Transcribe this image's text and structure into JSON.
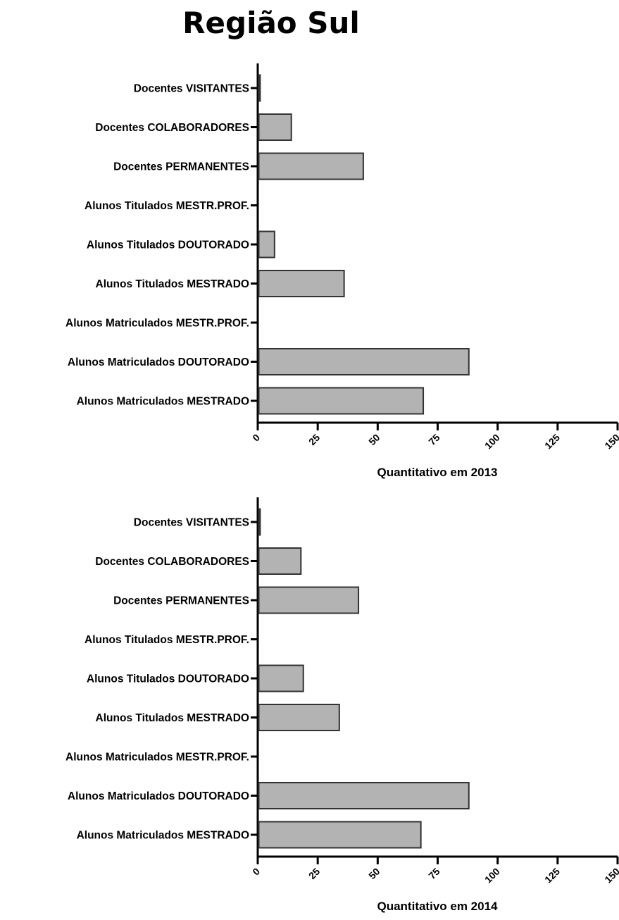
{
  "page": {
    "title": "Região Sul"
  },
  "chart_data": [
    {
      "type": "bar",
      "orientation": "horizontal",
      "title": "",
      "xlabel": "Quantitativo em 2013",
      "ylabel": "",
      "xlim": [
        0,
        150
      ],
      "x_ticks": [
        "0",
        "25",
        "50",
        "75",
        "100",
        "125",
        "150"
      ],
      "grid": false,
      "legend": "none",
      "bar_color": "#b3b3b3",
      "categories": [
        "Docentes VISITANTES",
        "Docentes COLABORADORES",
        "Docentes PERMANENTES",
        "Alunos Titulados MESTR.PROF.",
        "Alunos Titulados DOUTORADO",
        "Alunos Titulados MESTRADO",
        "Alunos Matriculados MESTR.PROF.",
        "Alunos Matriculados DOUTORADO",
        "Alunos Matriculados MESTRADO"
      ],
      "values": [
        1,
        14,
        44,
        0,
        7,
        36,
        0,
        88,
        69
      ]
    },
    {
      "type": "bar",
      "orientation": "horizontal",
      "title": "",
      "xlabel": "Quantitativo em 2014",
      "ylabel": "",
      "xlim": [
        0,
        150
      ],
      "x_ticks": [
        "0",
        "25",
        "50",
        "75",
        "100",
        "125",
        "150"
      ],
      "grid": false,
      "legend": "none",
      "bar_color": "#b3b3b3",
      "categories": [
        "Docentes VISITANTES",
        "Docentes COLABORADORES",
        "Docentes PERMANENTES",
        "Alunos Titulados MESTR.PROF.",
        "Alunos Titulados DOUTORADO",
        "Alunos Titulados MESTRADO",
        "Alunos Matriculados MESTR.PROF.",
        "Alunos Matriculados DOUTORADO",
        "Alunos Matriculados MESTRADO"
      ],
      "values": [
        1,
        18,
        42,
        0,
        19,
        34,
        0,
        88,
        68
      ]
    }
  ]
}
